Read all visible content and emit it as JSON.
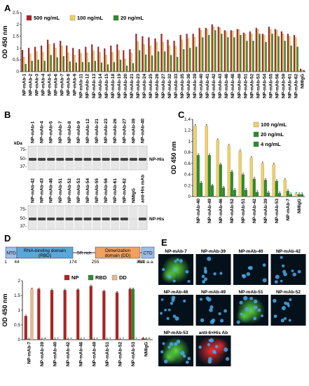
{
  "panels": {
    "A": "A",
    "B": "B",
    "C": "C",
    "D": "D",
    "E": "E"
  },
  "colors": {
    "red": "#b22222",
    "yellow": "#f0d060",
    "green": "#2e8b2e",
    "tan": "#e8b890"
  },
  "chart_data": [
    {
      "panel": "A",
      "type": "bar",
      "ylabel": "OD 450 nm",
      "ylim": [
        0,
        2.5
      ],
      "yticks": [
        0,
        0.5,
        1,
        1.5,
        2,
        2.5
      ],
      "categories": [
        "NP-mAb-1",
        "NP-mAb-2",
        "NP-mAb-3",
        "NP-mAb-4",
        "NP-mAb-5",
        "NP-mAb-6",
        "NP-mAb-7",
        "NP-mAb-8",
        "NP-mAb-9",
        "NP-mAb-11",
        "NP-mAb-12",
        "NP-mAb-13",
        "NP-mAb-14",
        "NP-mAb-15",
        "NP-mAb-18",
        "NP-mAb-19",
        "NP-mAb-20",
        "NP-mAb-21",
        "NP-mAb-23",
        "NP-mAb-24",
        "NP-mAb-25",
        "NP-mAb-26",
        "NP-mAb-27",
        "NP-mAb-32",
        "NP-mAb-33",
        "NP-mAb-35",
        "NP-mAb-36",
        "NP-mAb-39",
        "NP-mAb-40",
        "NP-mAb-41",
        "NP-mAb-42",
        "NP-mAb-43",
        "NP-mAb-46",
        "NP-mAb-48",
        "NP-mAb-49",
        "NP-mAb-51",
        "NP-mAb-52",
        "NP-mAb-53",
        "NP-mAb-54",
        "NP-mAb-55",
        "NP-mAb-56",
        "NP-mAb-59",
        "NP-mAb-61",
        "NP-mAb-62",
        "NMIgG"
      ],
      "series": [
        {
          "name": "500 ng/mL",
          "values": [
            0.92,
            1.0,
            1.05,
            1.1,
            1.35,
            1.2,
            1.3,
            1.1,
            1.0,
            0.95,
            1.05,
            1.15,
            1.05,
            0.98,
            1.1,
            1.15,
            0.9,
            0.95,
            1.6,
            1.5,
            1.45,
            1.4,
            1.6,
            1.35,
            1.3,
            1.55,
            1.6,
            1.6,
            1.85,
            1.85,
            2.0,
            1.9,
            1.75,
            1.75,
            1.8,
            1.65,
            1.7,
            1.85,
            1.6,
            1.9,
            1.8,
            1.7,
            1.6,
            1.55,
            0.12
          ]
        },
        {
          "name": "100 ng/mL",
          "values": [
            0.62,
            0.75,
            0.85,
            0.82,
            1.15,
            1.0,
            1.1,
            0.8,
            0.7,
            0.78,
            0.8,
            0.88,
            0.82,
            0.7,
            0.82,
            0.9,
            0.55,
            0.78,
            1.28,
            1.15,
            1.1,
            1.25,
            1.25,
            1.1,
            1.08,
            1.35,
            1.4,
            1.45,
            1.75,
            1.8,
            1.9,
            1.85,
            1.7,
            1.72,
            1.78,
            1.6,
            1.6,
            1.8,
            1.55,
            1.8,
            1.75,
            1.6,
            1.5,
            1.45,
            0.08
          ]
        },
        {
          "name": "20 ng/mL",
          "values": [
            0.32,
            0.45,
            0.5,
            0.45,
            0.7,
            0.6,
            0.65,
            0.42,
            0.38,
            0.4,
            0.4,
            0.45,
            0.38,
            0.3,
            0.4,
            0.5,
            0.25,
            0.35,
            0.9,
            0.72,
            0.68,
            0.85,
            0.85,
            0.7,
            0.62,
            0.95,
            1.0,
            1.05,
            1.45,
            1.55,
            1.75,
            1.6,
            1.45,
            1.45,
            1.55,
            1.3,
            1.3,
            1.6,
            1.25,
            1.6,
            1.5,
            1.3,
            1.1,
            1.05,
            0.06
          ]
        }
      ],
      "legend": "top-left"
    },
    {
      "panel": "C",
      "type": "bar",
      "ylabel": "OD 450 nm",
      "ylim": [
        0,
        1.4
      ],
      "yticks": [
        0,
        0.2,
        0.4,
        0.6,
        0.8,
        1,
        1.2,
        1.4
      ],
      "categories": [
        "NP-mAb-40",
        "NP-mAb-49",
        "NP-mAb-46",
        "NP-mAb-52",
        "NP-mAb-51",
        "NP-mAb-42",
        "NP-mAb-39",
        "NP-mAb-53",
        "NP-mAb-7",
        "NMIgG"
      ],
      "series": [
        {
          "name": "100 ng/mL",
          "values": [
            1.28,
            1.28,
            1.02,
            0.92,
            0.82,
            0.7,
            0.6,
            0.58,
            0.3,
            0.05
          ]
        },
        {
          "name": "20 ng/mL",
          "values": [
            0.75,
            0.75,
            0.58,
            0.45,
            0.4,
            0.32,
            0.3,
            0.28,
            0.1,
            0.04
          ]
        },
        {
          "name": "4 ng/mL",
          "values": [
            0.25,
            0.2,
            0.16,
            0.12,
            0.12,
            0.08,
            0.07,
            0.06,
            0.04,
            0.04
          ]
        }
      ],
      "legend": "top-right"
    },
    {
      "panel": "D",
      "type": "bar",
      "ylabel": "OD 450 nm",
      "ylim": [
        0,
        2
      ],
      "yticks": [
        0,
        0.5,
        1,
        1.5,
        2
      ],
      "categories": [
        "NP-mAb-7",
        "NP-mAb-39",
        "NP-mAb-40",
        "NP-mAb-42",
        "NP-mAb-46",
        "NP-mAb-49",
        "NP-mAb-51",
        "NP-mAb-52",
        "NP-mAb-53",
        "NMIgG"
      ],
      "series": [
        {
          "name": "NP",
          "values": [
            0.8,
            1.72,
            1.68,
            1.68,
            1.7,
            1.82,
            1.65,
            1.6,
            1.72,
            0.05
          ]
        },
        {
          "name": "RBD",
          "values": [
            0.02,
            0.02,
            0.02,
            0.02,
            0.02,
            0.02,
            0.02,
            0.02,
            1.72,
            0.03
          ]
        },
        {
          "name": "DD",
          "values": [
            1.72,
            0.03,
            0.02,
            0.02,
            0.02,
            0.02,
            0.02,
            0.02,
            0.02,
            0.03
          ]
        }
      ],
      "legend": "top-center"
    }
  ],
  "blot": {
    "kda_label": "kDa",
    "markers": [
      "75-",
      "50-",
      "37-"
    ],
    "top_lanes": [
      "NP-mAb-1",
      "NP-mAb-4",
      "NP-mAb-5",
      "NP-mAb-7",
      "NP-mAb-8",
      "NP-mAb-9",
      "NP-mAb-12",
      "NP-mAb-21",
      "NP-mAb-23",
      "NP-mAb-26",
      "NP-mAb-27",
      "NP-mAb-39",
      "NP-mAb-40"
    ],
    "bottom_lanes": [
      "NP-mAb-42",
      "NP-mAb-43",
      "NP-mAb-46",
      "NP-mAb-51",
      "NP-mAb-52",
      "NP-mAb-53",
      "NP-mAb-54",
      "NP-mAb-55",
      "NP-mAb-56",
      "NP-mAb-61",
      "NP-mAb-62",
      "NMIgG",
      "anti-His mAb"
    ],
    "band_label": "NP-His"
  },
  "domain_map": {
    "ntd": "NTD",
    "rbd": "RNA-binding domain",
    "rbd2": "(RBD)",
    "sr": "SR rich",
    "dd": "Dimerization",
    "dd2": "domain (DD)",
    "ctd": "CTD",
    "positions": [
      "1",
      "44",
      "174",
      "255",
      "364",
      "419 a.a."
    ]
  },
  "micrographs": [
    {
      "label": "NP-mAb-7",
      "signal": "green-strong"
    },
    {
      "label": "NP-mAb-39",
      "signal": "blue"
    },
    {
      "label": "NP-mAb-40",
      "signal": "blue"
    },
    {
      "label": "NP-mAb-42",
      "signal": "blue"
    },
    {
      "label": "NP-mAb-46",
      "signal": "blue"
    },
    {
      "label": "NP-mAb-49",
      "signal": "blue"
    },
    {
      "label": "NP-mAb-51",
      "signal": "green-strong"
    },
    {
      "label": "NP-mAb-52",
      "signal": "blue"
    },
    {
      "label": "NP-mAb-53",
      "signal": "green-strong"
    },
    {
      "label": "anti-6×His Ab",
      "signal": "red-strong"
    }
  ]
}
